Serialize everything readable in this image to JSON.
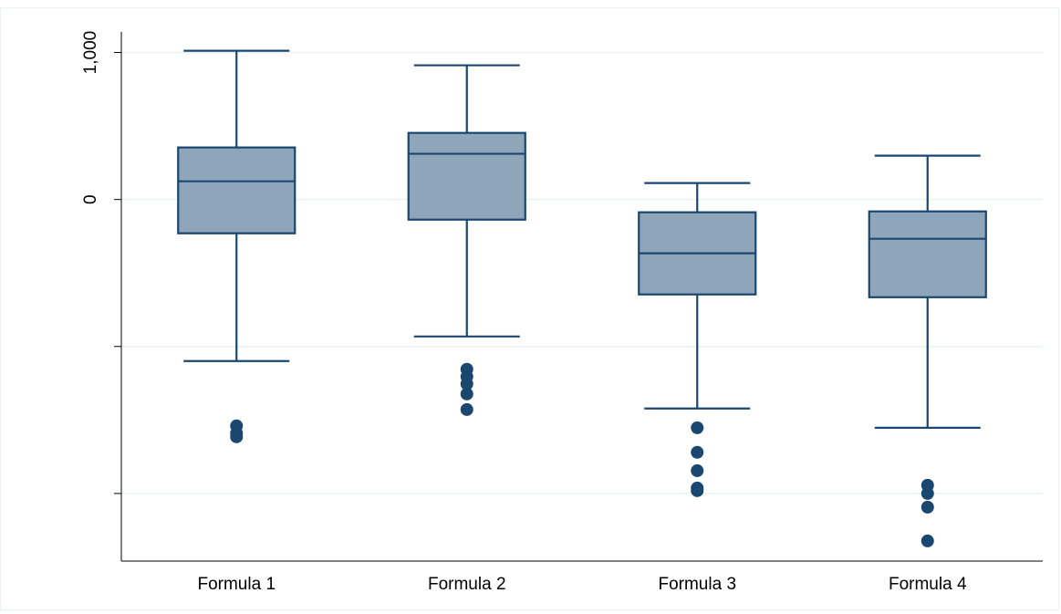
{
  "chart_data": {
    "type": "box",
    "categories": [
      "Formula 1",
      "Formula 2",
      "Formula 3",
      "Formula 4"
    ],
    "boxes": [
      {
        "whisker_low": -1099,
        "q1": -230,
        "median": 124,
        "q3": 354,
        "whisker_high": 1012,
        "outliers": [
          -1540,
          -1590,
          -1615
        ]
      },
      {
        "whisker_low": -932,
        "q1": -137,
        "median": 311,
        "q3": 453,
        "whisker_high": 913,
        "outliers": [
          -1155,
          -1205,
          -1255,
          -1323,
          -1429
        ]
      },
      {
        "whisker_low": -1422,
        "q1": -646,
        "median": -366,
        "q3": -87,
        "whisker_high": 112,
        "outliers": [
          -1553,
          -1720,
          -1845,
          -1963,
          -1981
        ]
      },
      {
        "whisker_low": -1553,
        "q1": -665,
        "median": -267,
        "q3": -81,
        "whisker_high": 298,
        "outliers": [
          -1944,
          -2000,
          -2093,
          -2323
        ]
      }
    ],
    "fill": "#8fa5b9",
    "color": "#1a476f",
    "ylim": [
      -2460,
      1140
    ],
    "yticks": [
      {
        "value": 1000,
        "label": "1,000"
      },
      0,
      {
        "value": -1000,
        "label": null
      },
      {
        "value": -2000,
        "label": null
      }
    ],
    "grid": true
  }
}
